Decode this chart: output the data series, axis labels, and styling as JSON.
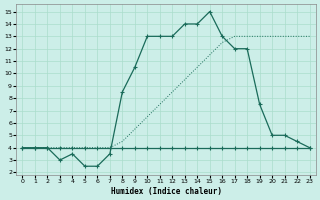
{
  "xlabel": "Humidex (Indice chaleur)",
  "bg_color": "#cceee8",
  "grid_color": "#aaddcc",
  "line_color": "#1a6b5a",
  "xlim": [
    -0.5,
    23.5
  ],
  "ylim": [
    1.8,
    15.6
  ],
  "yticks": [
    2,
    3,
    4,
    5,
    6,
    7,
    8,
    9,
    10,
    11,
    12,
    13,
    14,
    15
  ],
  "xticks": [
    0,
    1,
    2,
    3,
    4,
    5,
    6,
    7,
    8,
    9,
    10,
    11,
    12,
    13,
    14,
    15,
    16,
    17,
    18,
    19,
    20,
    21,
    22,
    23
  ],
  "curve_main_x": [
    0,
    1,
    2,
    3,
    4,
    5,
    6,
    7,
    8,
    9,
    10,
    11,
    12,
    13,
    14,
    15,
    16,
    17,
    18,
    19,
    20,
    21,
    22,
    23
  ],
  "curve_main_y": [
    4,
    4,
    4,
    3,
    3.5,
    2.5,
    2.5,
    3.5,
    8.5,
    10.5,
    13,
    13,
    13,
    14,
    14,
    15,
    13,
    12,
    12,
    7.5,
    5,
    5,
    4.5,
    4
  ],
  "curve_flat_x": [
    0,
    1,
    2,
    3,
    4,
    5,
    6,
    7,
    8,
    9,
    10,
    11,
    12,
    13,
    14,
    15,
    16,
    17,
    18,
    19,
    20,
    21,
    22,
    23
  ],
  "curve_flat_y": [
    4,
    4,
    4,
    4,
    4,
    4,
    4,
    4,
    4,
    4,
    4,
    4,
    4,
    4,
    4,
    4,
    4,
    4,
    4,
    4,
    4,
    4,
    4,
    4
  ],
  "curve_dot_x": [
    0,
    2,
    3,
    4,
    5,
    6,
    7,
    8,
    9,
    10,
    11,
    12,
    13,
    14,
    15,
    16,
    17,
    18,
    19,
    20,
    21,
    22,
    23
  ],
  "curve_dot_y": [
    4,
    4,
    4,
    4,
    4,
    4,
    4,
    4.5,
    5.5,
    6.5,
    7.5,
    8.5,
    9.5,
    10.5,
    11.5,
    12.5,
    13,
    13,
    13,
    13,
    13,
    13,
    13
  ]
}
